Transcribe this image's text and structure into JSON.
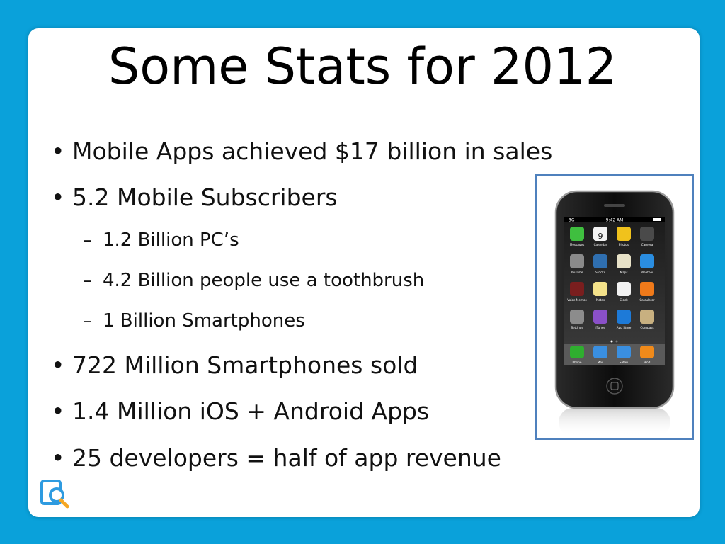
{
  "slide": {
    "title": "Some Stats for 2012",
    "bullets": [
      {
        "level": 1,
        "marker": "•",
        "text": "Mobile Apps achieved $17 billion in sales"
      },
      {
        "level": 1,
        "marker": "•",
        "text": "5.2 Mobile Subscribers"
      },
      {
        "level": 2,
        "marker": "–",
        "text": "1.2 Billion PC’s"
      },
      {
        "level": 2,
        "marker": "–",
        "text": "4.2 Billion people use a toothbrush"
      },
      {
        "level": 2,
        "marker": "–",
        "text": "1 Billion Smartphones"
      },
      {
        "level": 1,
        "marker": "•",
        "text": "722 Million Smartphones sold"
      },
      {
        "level": 1,
        "marker": "•",
        "text": "1.4 Million iOS + Android Apps"
      },
      {
        "level": 1,
        "marker": "•",
        "text": "25 developers = half of app revenue"
      }
    ]
  },
  "phone": {
    "status_carrier": "3G",
    "status_time": "9:42 AM",
    "calendar_day": "9",
    "apps": [
      "Messages",
      "Calendar",
      "Photos",
      "Camera",
      "YouTube",
      "Stocks",
      "Maps",
      "Weather",
      "Voice Memos",
      "Notes",
      "Clock",
      "Calculator",
      "Settings",
      "iTunes",
      "App Store",
      "Compass"
    ],
    "dock": [
      "Phone",
      "Mail",
      "Safari",
      "iPod"
    ]
  },
  "colors": {
    "background": "#0aa1da",
    "slide": "#ffffff",
    "frame_border": "#4f81bd",
    "logo": "#2e9be0"
  },
  "icons": {
    "logo": "search-document-icon"
  }
}
